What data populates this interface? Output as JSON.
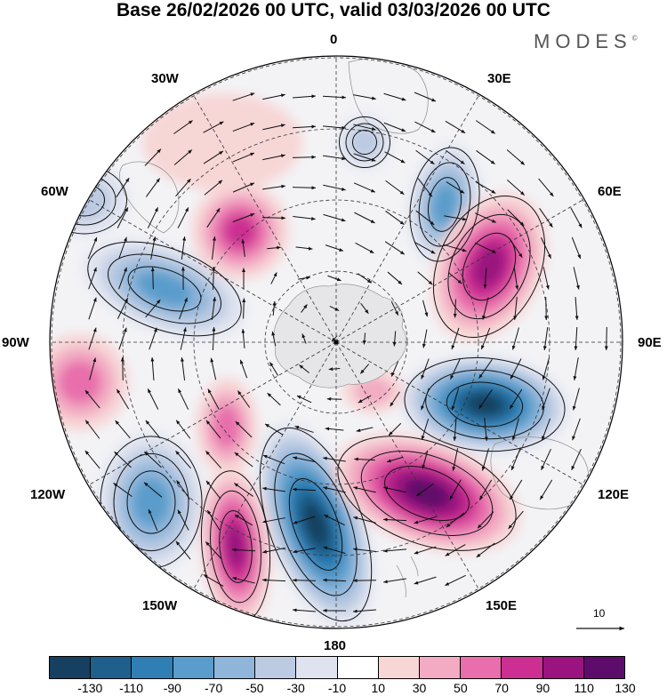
{
  "title": "Base 26/02/2026 00 UTC, valid 03/03/2026 00 UTC",
  "brand": "MODES",
  "brand_mark": "©",
  "longitude_labels": [
    "0",
    "30E",
    "60E",
    "90E",
    "120E",
    "150E",
    "180",
    "150W",
    "120W",
    "90W",
    "60W",
    "30W"
  ],
  "reference_vector_label": "10",
  "colorbar": {
    "ticks": [
      "-130",
      "-110",
      "-90",
      "-70",
      "-50",
      "-30",
      "-10",
      "10",
      "30",
      "50",
      "70",
      "90",
      "110",
      "130"
    ],
    "colors": [
      "#173f5f",
      "#1f5f8b",
      "#2f7fb5",
      "#5a9ccb",
      "#8fb6da",
      "#bccbe2",
      "#dfe3ef",
      "#ffffff",
      "#f7d6d6",
      "#f2abc3",
      "#e86eac",
      "#cc2e92",
      "#9a137f",
      "#5e0c6c"
    ]
  }
}
